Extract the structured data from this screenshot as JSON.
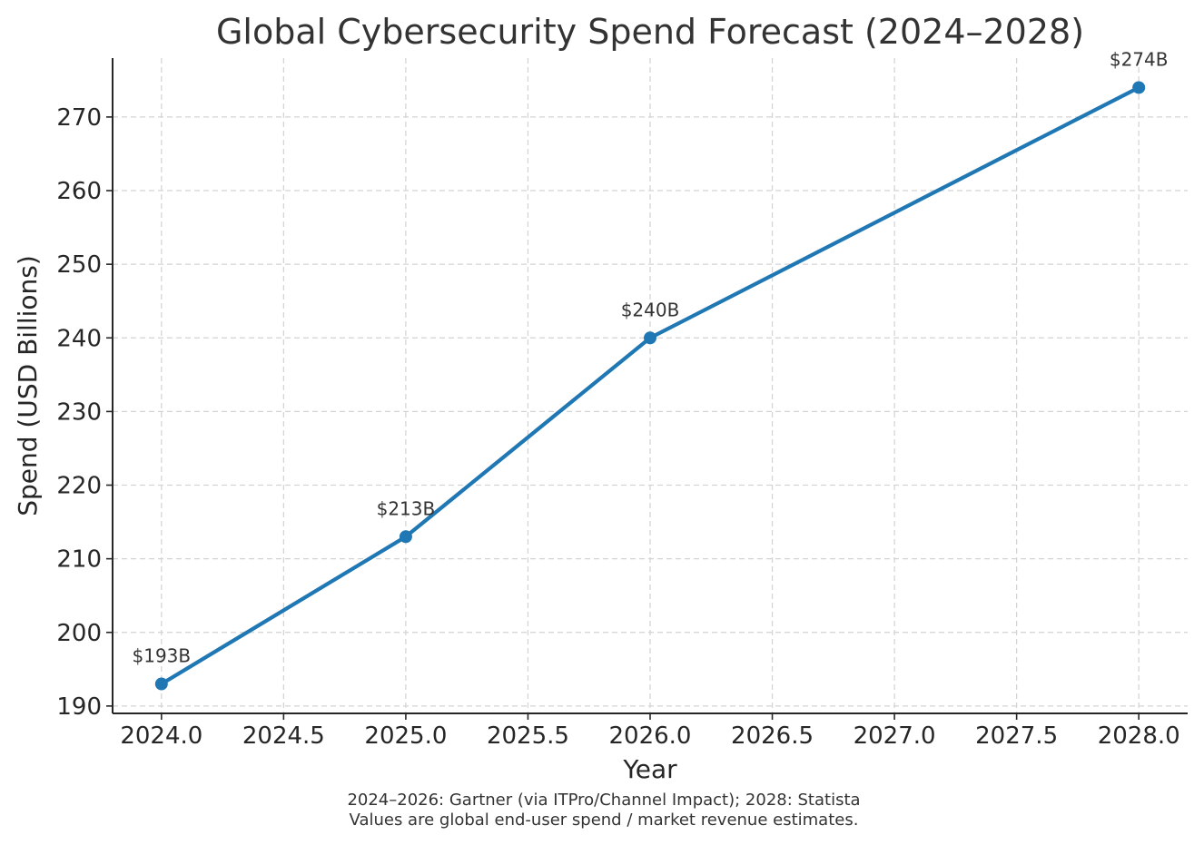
{
  "chart_data": {
    "type": "line",
    "title": "Global Cybersecurity Spend Forecast (2024–2028)",
    "xlabel": "Year",
    "ylabel": "Spend (USD Billions)",
    "xlim": [
      2023.8,
      2028.2
    ],
    "ylim": [
      189,
      278
    ],
    "x_ticks": [
      2024.0,
      2024.5,
      2025.0,
      2025.5,
      2026.0,
      2026.5,
      2027.0,
      2027.5,
      2028.0
    ],
    "x_tick_labels": [
      "2024.0",
      "2024.5",
      "2025.0",
      "2025.5",
      "2026.0",
      "2026.5",
      "2027.0",
      "2027.5",
      "2028.0"
    ],
    "y_ticks": [
      190,
      200,
      210,
      220,
      230,
      240,
      250,
      260,
      270
    ],
    "y_tick_labels": [
      "190",
      "200",
      "210",
      "220",
      "230",
      "240",
      "250",
      "260",
      "270"
    ],
    "grid": true,
    "legend": false,
    "series": [
      {
        "color": "#1f77b4",
        "x": [
          2024,
          2025,
          2026,
          2028
        ],
        "y": [
          193,
          213,
          240,
          274
        ],
        "data_labels": [
          "$193B",
          "$213B",
          "$240B",
          "$274B"
        ]
      }
    ],
    "footnote_lines": [
      "2024–2026: Gartner (via ITPro/Channel Impact); 2028: Statista",
      "Values are global end-user spend / market revenue estimates."
    ]
  }
}
